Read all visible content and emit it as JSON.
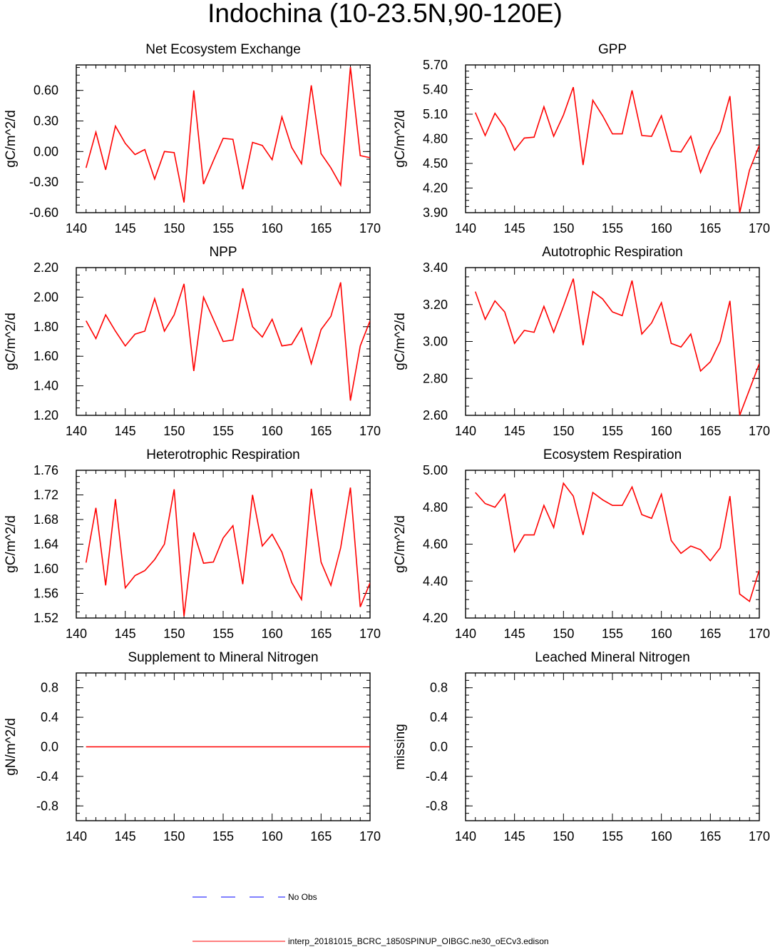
{
  "title": "Indochina (10-23.5N,90-120E)",
  "colors": {
    "model": "#ff0000",
    "obs": "#0000ff",
    "axis": "#000000"
  },
  "legend": {
    "obs_label": "No Obs",
    "model_label": "interp_20181015_BCRC_1850SPINUP_OIBGC.ne30_oECv3.edison"
  },
  "chart_data": [
    {
      "type": "line",
      "title": "Net Ecosystem Exchange",
      "ylabel": "gC/m^2/d",
      "xlim": [
        140,
        170
      ],
      "ylim": [
        -0.6,
        0.85
      ],
      "xticks": [
        140,
        145,
        150,
        155,
        160,
        165,
        170
      ],
      "yticks": [
        -0.6,
        -0.3,
        0.0,
        0.3,
        0.6
      ],
      "ytick_labels": [
        "-0.60",
        "-0.30",
        "0.00",
        "0.30",
        "0.60"
      ],
      "series": [
        {
          "name": "model",
          "x": [
            141,
            142,
            143,
            144,
            145,
            146,
            147,
            148,
            149,
            150,
            151,
            152,
            153,
            154,
            155,
            156,
            157,
            158,
            159,
            160,
            161,
            162,
            163,
            164,
            165,
            166,
            167,
            168,
            169,
            170
          ],
          "values": [
            -0.16,
            0.19,
            -0.18,
            0.25,
            0.08,
            -0.03,
            0.02,
            -0.27,
            0.0,
            -0.01,
            -0.5,
            0.6,
            -0.32,
            -0.09,
            0.13,
            0.12,
            -0.37,
            0.09,
            0.06,
            -0.08,
            0.34,
            0.04,
            -0.12,
            0.65,
            -0.02,
            -0.16,
            -0.33,
            0.83,
            -0.04,
            -0.06
          ]
        }
      ]
    },
    {
      "type": "line",
      "title": "GPP",
      "ylabel": "gC/m^2/d",
      "xlim": [
        140,
        170
      ],
      "ylim": [
        3.9,
        5.7
      ],
      "xticks": [
        140,
        145,
        150,
        155,
        160,
        165,
        170
      ],
      "yticks": [
        3.9,
        4.2,
        4.5,
        4.8,
        5.1,
        5.4,
        5.7
      ],
      "ytick_labels": [
        "3.90",
        "4.20",
        "4.50",
        "4.80",
        "5.10",
        "5.40",
        "5.70"
      ],
      "series": [
        {
          "name": "model",
          "x": [
            141,
            142,
            143,
            144,
            145,
            146,
            147,
            148,
            149,
            150,
            151,
            152,
            153,
            154,
            155,
            156,
            157,
            158,
            159,
            160,
            161,
            162,
            163,
            164,
            165,
            166,
            167,
            168,
            169,
            170
          ],
          "values": [
            5.12,
            4.84,
            5.11,
            4.94,
            4.66,
            4.81,
            4.82,
            5.19,
            4.83,
            5.09,
            5.43,
            4.48,
            5.27,
            5.08,
            4.86,
            4.86,
            5.39,
            4.84,
            4.83,
            5.08,
            4.65,
            4.64,
            4.83,
            4.39,
            4.67,
            4.89,
            5.32,
            3.9,
            4.42,
            4.72
          ]
        }
      ]
    },
    {
      "type": "line",
      "title": "NPP",
      "ylabel": "gC/m^2/d",
      "xlim": [
        140,
        170
      ],
      "ylim": [
        1.2,
        2.2
      ],
      "xticks": [
        140,
        145,
        150,
        155,
        160,
        165,
        170
      ],
      "yticks": [
        1.2,
        1.4,
        1.6,
        1.8,
        2.0,
        2.2
      ],
      "ytick_labels": [
        "1.20",
        "1.40",
        "1.60",
        "1.80",
        "2.00",
        "2.20"
      ],
      "series": [
        {
          "name": "model",
          "x": [
            141,
            142,
            143,
            144,
            145,
            146,
            147,
            148,
            149,
            150,
            151,
            152,
            153,
            154,
            155,
            156,
            157,
            158,
            159,
            160,
            161,
            162,
            163,
            164,
            165,
            166,
            167,
            168,
            169,
            170
          ],
          "values": [
            1.84,
            1.72,
            1.88,
            1.77,
            1.67,
            1.75,
            1.77,
            1.99,
            1.77,
            1.88,
            2.09,
            1.5,
            2.0,
            1.85,
            1.7,
            1.71,
            2.06,
            1.8,
            1.73,
            1.85,
            1.67,
            1.68,
            1.79,
            1.55,
            1.78,
            1.87,
            2.1,
            1.3,
            1.67,
            1.84
          ]
        }
      ]
    },
    {
      "type": "line",
      "title": "Autotrophic Respiration",
      "ylabel": "gC/m^2/d",
      "xlim": [
        140,
        170
      ],
      "ylim": [
        2.6,
        3.4
      ],
      "xticks": [
        140,
        145,
        150,
        155,
        160,
        165,
        170
      ],
      "yticks": [
        2.6,
        2.8,
        3.0,
        3.2,
        3.4
      ],
      "ytick_labels": [
        "2.60",
        "2.80",
        "3.00",
        "3.20",
        "3.40"
      ],
      "series": [
        {
          "name": "model",
          "x": [
            141,
            142,
            143,
            144,
            145,
            146,
            147,
            148,
            149,
            150,
            151,
            152,
            153,
            154,
            155,
            156,
            157,
            158,
            159,
            160,
            161,
            162,
            163,
            164,
            165,
            166,
            167,
            168,
            169,
            170
          ],
          "values": [
            3.27,
            3.12,
            3.22,
            3.16,
            2.99,
            3.06,
            3.05,
            3.19,
            3.05,
            3.19,
            3.34,
            2.98,
            3.27,
            3.23,
            3.16,
            3.14,
            3.33,
            3.04,
            3.1,
            3.21,
            2.99,
            2.97,
            3.04,
            2.84,
            2.89,
            3.0,
            3.22,
            2.6,
            2.74,
            2.88
          ]
        }
      ]
    },
    {
      "type": "line",
      "title": "Heterotrophic Respiration",
      "ylabel": "gC/m^2/d",
      "xlim": [
        140,
        170
      ],
      "ylim": [
        1.52,
        1.76
      ],
      "xticks": [
        140,
        145,
        150,
        155,
        160,
        165,
        170
      ],
      "yticks": [
        1.52,
        1.56,
        1.6,
        1.64,
        1.68,
        1.72,
        1.76
      ],
      "ytick_labels": [
        "1.52",
        "1.56",
        "1.60",
        "1.64",
        "1.68",
        "1.72",
        "1.76"
      ],
      "series": [
        {
          "name": "model",
          "x": [
            141,
            142,
            143,
            144,
            145,
            146,
            147,
            148,
            149,
            150,
            151,
            152,
            153,
            154,
            155,
            156,
            157,
            158,
            159,
            160,
            161,
            162,
            163,
            164,
            165,
            166,
            167,
            168,
            169,
            170
          ],
          "values": [
            1.61,
            1.699,
            1.573,
            1.713,
            1.569,
            1.589,
            1.597,
            1.615,
            1.64,
            1.729,
            1.523,
            1.659,
            1.609,
            1.611,
            1.65,
            1.67,
            1.575,
            1.72,
            1.637,
            1.656,
            1.627,
            1.578,
            1.55,
            1.73,
            1.611,
            1.573,
            1.634,
            1.732,
            1.538,
            1.577
          ]
        }
      ]
    },
    {
      "type": "line",
      "title": "Ecosystem Respiration",
      "ylabel": "gC/m^2/d",
      "xlim": [
        140,
        170
      ],
      "ylim": [
        4.2,
        5.0
      ],
      "xticks": [
        140,
        145,
        150,
        155,
        160,
        165,
        170
      ],
      "yticks": [
        4.2,
        4.4,
        4.6,
        4.8,
        5.0
      ],
      "ytick_labels": [
        "4.20",
        "4.40",
        "4.60",
        "4.80",
        "5.00"
      ],
      "series": [
        {
          "name": "model",
          "x": [
            141,
            142,
            143,
            144,
            145,
            146,
            147,
            148,
            149,
            150,
            151,
            152,
            153,
            154,
            155,
            156,
            157,
            158,
            159,
            160,
            161,
            162,
            163,
            164,
            165,
            166,
            167,
            168,
            169,
            170
          ],
          "values": [
            4.88,
            4.82,
            4.8,
            4.87,
            4.56,
            4.65,
            4.65,
            4.81,
            4.69,
            4.93,
            4.86,
            4.65,
            4.88,
            4.84,
            4.81,
            4.81,
            4.91,
            4.76,
            4.74,
            4.87,
            4.62,
            4.55,
            4.59,
            4.57,
            4.51,
            4.58,
            4.86,
            4.33,
            4.29,
            4.46
          ]
        }
      ]
    },
    {
      "type": "line",
      "title": "Supplement to Mineral Nitrogen",
      "ylabel": "gN/m^2/d",
      "xlim": [
        140,
        170
      ],
      "ylim": [
        -1.0,
        1.0
      ],
      "xticks": [
        140,
        145,
        150,
        155,
        160,
        165,
        170
      ],
      "yticks": [
        -0.8,
        -0.4,
        0.0,
        0.4,
        0.8
      ],
      "ytick_labels": [
        "-0.8",
        "-0.4",
        "0.0",
        "0.4",
        "0.8"
      ],
      "series": [
        {
          "name": "model",
          "x": [
            141,
            142,
            143,
            144,
            145,
            146,
            147,
            148,
            149,
            150,
            151,
            152,
            153,
            154,
            155,
            156,
            157,
            158,
            159,
            160,
            161,
            162,
            163,
            164,
            165,
            166,
            167,
            168,
            169,
            170
          ],
          "values": [
            0,
            0,
            0,
            0,
            0,
            0,
            0,
            0,
            0,
            0,
            0,
            0,
            0,
            0,
            0,
            0,
            0,
            0,
            0,
            0,
            0,
            0,
            0,
            0,
            0,
            0,
            0,
            0,
            0,
            0
          ]
        }
      ]
    },
    {
      "type": "line",
      "title": "Leached Mineral Nitrogen",
      "ylabel": "missing",
      "xlim": [
        140,
        170
      ],
      "ylim": [
        -1.0,
        1.0
      ],
      "xticks": [
        140,
        145,
        150,
        155,
        160,
        165,
        170
      ],
      "yticks": [
        -0.8,
        -0.4,
        0.0,
        0.4,
        0.8
      ],
      "ytick_labels": [
        "-0.8",
        "-0.4",
        "0.0",
        "0.4",
        "0.8"
      ],
      "series": []
    }
  ]
}
